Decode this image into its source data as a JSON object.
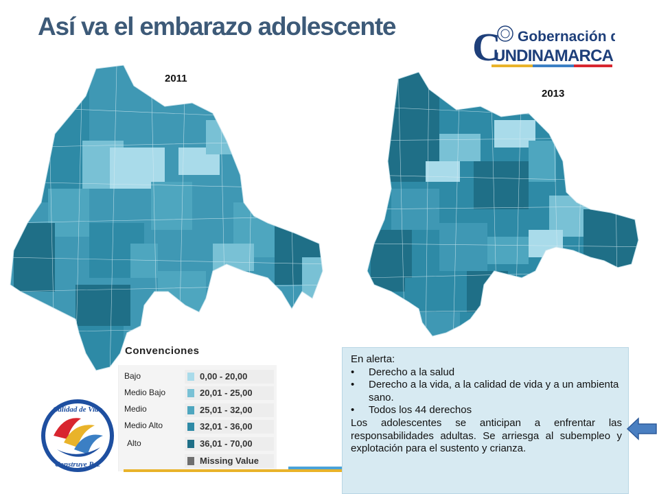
{
  "title": "Así va el embarazo adolescente",
  "logo_governacion": {
    "line1": "Gobernación de",
    "line2": "UNDINAMARCA",
    "initial": "C"
  },
  "maps": [
    {
      "year": "2011"
    },
    {
      "year": "2013"
    }
  ],
  "legend": {
    "title": "Convenciones",
    "items": [
      {
        "label": "Bajo",
        "range": "0,00 - 20,00",
        "color": "#a9dbea"
      },
      {
        "label": "Medio Bajo",
        "range": "20,01 - 25,00",
        "color": "#79c1d5"
      },
      {
        "label": "Medio",
        "range": "25,01 - 32,00",
        "color": "#4ea6bf"
      },
      {
        "label": "Medio Alto",
        "range": "32,01 - 36,00",
        "color": "#2e8aa6"
      },
      {
        "label": "Alto",
        "range": "36,01 - 70,00",
        "color": "#1f6f87"
      },
      {
        "label": "",
        "range": "Missing Value",
        "color": "#6e6e6e"
      }
    ]
  },
  "logo_calidad": {
    "top": "Calidad de Vida",
    "bottom": "Construye Paz"
  },
  "alert": {
    "heading": "En alerta:",
    "items": [
      "Derecho a la salud",
      "Derecho a la vida, a la calidad de vida y a un ambienta sano.",
      "Todos los 44 derechos"
    ],
    "paragraph": "Los adolescentes se anticipan a enfrentar las responsabilidades adultas. Se arriesga al subempleo y explotación para el sustento y crianza."
  },
  "colors": {
    "title": "#3d5a78",
    "alert_bg": "#d7eaf2",
    "arrow": "#4a7fc1"
  }
}
